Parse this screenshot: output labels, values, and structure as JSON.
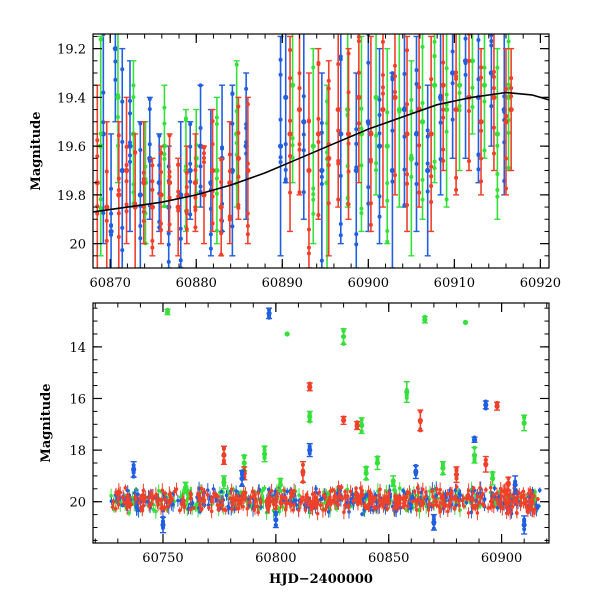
{
  "figure": {
    "colors": {
      "blue": "#1f5fe0",
      "green": "#35e03a",
      "red": "#f0402a",
      "model": "#000000",
      "frame": "#000000"
    }
  },
  "chart_data": [
    {
      "type": "scatter",
      "title": "",
      "xlabel": "",
      "ylabel": "Magnitude",
      "xlim": [
        60868,
        60921
      ],
      "ylim": [
        20.1,
        19.14
      ],
      "y_inverted": true,
      "grid": false,
      "legend": "none",
      "x_ticks": [
        60870,
        60880,
        60890,
        60900,
        60910,
        60920
      ],
      "y_ticks": [
        19.2,
        19.4,
        19.6,
        19.8,
        20
      ],
      "y_tick_labels": [
        "19.2",
        "19.4",
        "19.6",
        "19.8",
        "20"
      ],
      "series": [
        {
          "color": "blue",
          "marker": "circle-errorbar",
          "points": [
            [
              60869.2,
              19.55,
              0.45
            ],
            [
              60870.1,
              19.95,
              0.4
            ],
            [
              60870.6,
              19.2,
              0.3
            ],
            [
              60871.4,
              19.7,
              0.5
            ],
            [
              60872.3,
              19.6,
              0.35
            ],
            [
              60873.5,
              19.8,
              0.3
            ],
            [
              60874.6,
              19.65,
              0.25
            ],
            [
              60875.7,
              19.75,
              0.2
            ],
            [
              60876.8,
              19.85,
              0.25
            ],
            [
              60878.2,
              19.8,
              0.3
            ],
            [
              60879.3,
              19.7,
              0.2
            ],
            [
              60880.5,
              19.6,
              0.25
            ],
            [
              60881.7,
              19.75,
              0.3
            ],
            [
              60883.0,
              19.65,
              0.3
            ],
            [
              60884.2,
              19.7,
              0.35
            ],
            [
              60885.8,
              19.6,
              0.3
            ],
            [
              60889.8,
              19.6,
              0.45
            ],
            [
              60890.4,
              19.4,
              0.35
            ],
            [
              60892.5,
              19.5,
              0.4
            ],
            [
              60894.6,
              19.7,
              0.4
            ],
            [
              60896.8,
              19.55,
              0.45
            ],
            [
              60898.6,
              19.7,
              0.4
            ],
            [
              60900.0,
              19.5,
              0.45
            ],
            [
              60901.3,
              19.6,
              0.4
            ],
            [
              60902.8,
              19.7,
              0.4
            ],
            [
              60904.2,
              19.45,
              0.4
            ],
            [
              60905.6,
              19.55,
              0.4
            ],
            [
              60906.9,
              19.7,
              0.35
            ],
            [
              60908.4,
              19.4,
              0.4
            ],
            [
              60909.8,
              19.3,
              0.35
            ],
            [
              60911.3,
              19.25,
              0.4
            ],
            [
              60912.8,
              19.4,
              0.35
            ],
            [
              60914.3,
              19.3,
              0.3
            ],
            [
              60915.8,
              19.45,
              0.35
            ]
          ]
        },
        {
          "color": "green",
          "marker": "circle-errorbar",
          "points": [
            [
              60868.9,
              19.6,
              0.45
            ],
            [
              60870.9,
              19.4,
              0.35
            ],
            [
              60872.7,
              19.55,
              0.3
            ],
            [
              60874.1,
              19.75,
              0.25
            ],
            [
              60876.3,
              19.6,
              0.25
            ],
            [
              60878.8,
              19.7,
              0.25
            ],
            [
              60880.0,
              19.65,
              0.2
            ],
            [
              60882.4,
              19.7,
              0.3
            ],
            [
              60884.7,
              19.55,
              0.3
            ],
            [
              60891.2,
              19.35,
              0.4
            ],
            [
              60893.6,
              19.6,
              0.4
            ],
            [
              60895.2,
              19.75,
              0.4
            ],
            [
              60897.6,
              19.45,
              0.4
            ],
            [
              60899.2,
              19.55,
              0.4
            ],
            [
              60900.9,
              19.4,
              0.4
            ],
            [
              60902.2,
              19.6,
              0.4
            ],
            [
              60903.6,
              19.45,
              0.4
            ],
            [
              60905.0,
              19.65,
              0.4
            ],
            [
              60906.3,
              19.5,
              0.4
            ],
            [
              60907.7,
              19.35,
              0.4
            ],
            [
              60909.1,
              19.45,
              0.4
            ],
            [
              60910.6,
              19.35,
              0.35
            ],
            [
              60912.1,
              19.25,
              0.3
            ],
            [
              60913.5,
              19.35,
              0.3
            ],
            [
              60915.0,
              19.55,
              0.35
            ],
            [
              60916.3,
              19.4,
              0.3
            ]
          ]
        },
        {
          "color": "red",
          "marker": "circle-errorbar",
          "points": [
            [
              60868.5,
              19.75,
              0.4
            ],
            [
              60869.6,
              19.85,
              0.35
            ],
            [
              60871.0,
              19.8,
              0.3
            ],
            [
              60871.9,
              19.7,
              0.3
            ],
            [
              60872.9,
              19.85,
              0.3
            ],
            [
              60873.9,
              19.75,
              0.25
            ],
            [
              60874.9,
              19.85,
              0.2
            ],
            [
              60875.9,
              19.8,
              0.2
            ],
            [
              60876.9,
              19.75,
              0.2
            ],
            [
              60877.9,
              19.85,
              0.2
            ],
            [
              60878.9,
              19.8,
              0.2
            ],
            [
              60879.9,
              19.75,
              0.2
            ],
            [
              60880.9,
              19.8,
              0.2
            ],
            [
              60881.9,
              19.7,
              0.25
            ],
            [
              60882.9,
              19.85,
              0.2
            ],
            [
              60883.9,
              19.75,
              0.25
            ],
            [
              60884.9,
              19.65,
              0.25
            ],
            [
              60886.0,
              19.7,
              0.3
            ],
            [
              60890.9,
              19.55,
              0.4
            ],
            [
              60892.0,
              19.45,
              0.35
            ],
            [
              60893.1,
              19.7,
              0.4
            ],
            [
              60894.2,
              19.55,
              0.35
            ],
            [
              60895.4,
              19.65,
              0.4
            ],
            [
              60896.5,
              19.45,
              0.4
            ],
            [
              60897.7,
              19.55,
              0.35
            ],
            [
              60898.9,
              19.4,
              0.35
            ],
            [
              60900.3,
              19.55,
              0.4
            ],
            [
              60901.7,
              19.45,
              0.4
            ],
            [
              60903.1,
              19.4,
              0.4
            ],
            [
              60904.5,
              19.55,
              0.4
            ],
            [
              60905.9,
              19.45,
              0.4
            ],
            [
              60907.3,
              19.55,
              0.4
            ],
            [
              60908.7,
              19.35,
              0.35
            ],
            [
              60910.2,
              19.45,
              0.35
            ],
            [
              60911.7,
              19.4,
              0.3
            ],
            [
              60913.1,
              19.5,
              0.3
            ],
            [
              60914.6,
              19.4,
              0.3
            ],
            [
              60916.0,
              19.5,
              0.3
            ],
            [
              60916.6,
              19.45,
              0.25
            ]
          ]
        }
      ],
      "model_curve": [
        [
          60868,
          19.87
        ],
        [
          60872,
          19.85
        ],
        [
          60876,
          19.83
        ],
        [
          60880,
          19.8
        ],
        [
          60884,
          19.76
        ],
        [
          60888,
          19.71
        ],
        [
          60892,
          19.65
        ],
        [
          60896,
          19.59
        ],
        [
          60900,
          19.53
        ],
        [
          60904,
          19.48
        ],
        [
          60908,
          19.43
        ],
        [
          60912,
          19.4
        ],
        [
          60916,
          19.38
        ],
        [
          60919,
          19.39
        ],
        [
          60921,
          19.41
        ]
      ]
    },
    {
      "type": "scatter",
      "title": "",
      "xlabel": "HJD−2400000",
      "ylabel": "Magnitude",
      "xlim": [
        60719,
        60921
      ],
      "ylim": [
        21.6,
        12.3
      ],
      "y_inverted": true,
      "grid": false,
      "legend": "none",
      "x_ticks": [
        60750,
        60800,
        60850,
        60900
      ],
      "y_ticks": [
        14,
        16,
        18,
        20
      ],
      "y_tick_labels": [
        "14",
        "16",
        "18",
        "20"
      ],
      "baseline_band": {
        "x": [
          60727,
          60917
        ],
        "center": 19.95,
        "half_width": 0.55
      },
      "series": [
        {
          "color": "green",
          "marker": "circle-errorbar",
          "points": [
            [
              60752,
              12.65,
              0.1
            ],
            [
              60805,
              13.5,
              0.0
            ],
            [
              60830,
              13.6,
              0.3
            ],
            [
              60866,
              12.95,
              0.12
            ],
            [
              60884,
              13.05,
              0.0
            ],
            [
              60815,
              16.7,
              0.2
            ],
            [
              60838,
              17.05,
              0.3
            ],
            [
              60858,
              15.75,
              0.4
            ],
            [
              60910,
              16.95,
              0.3
            ],
            [
              60795,
              18.15,
              0.3
            ],
            [
              60786,
              18.5,
              0.3
            ],
            [
              60888,
              18.2,
              0.3
            ],
            [
              60840,
              18.9,
              0.25
            ],
            [
              60845,
              18.5,
              0.25
            ],
            [
              60874,
              18.7,
              0.25
            ],
            [
              60760,
              19.45,
              0.2
            ],
            [
              60777,
              19.25,
              0.25
            ],
            [
              60802,
              19.35,
              0.25
            ],
            [
              60852,
              19.2,
              0.2
            ],
            [
              60896,
              19.1,
              0.25
            ]
          ]
        },
        {
          "color": "red",
          "marker": "circle-errorbar",
          "points": [
            [
              60815,
              15.55,
              0.15
            ],
            [
              60830,
              16.85,
              0.15
            ],
            [
              60836,
              17.05,
              0.15
            ],
            [
              60864,
              16.85,
              0.4
            ],
            [
              60898,
              16.3,
              0.15
            ],
            [
              60777,
              18.2,
              0.35
            ],
            [
              60812,
              18.85,
              0.4
            ],
            [
              60880,
              18.95,
              0.3
            ],
            [
              60893,
              18.55,
              0.3
            ],
            [
              60786,
              18.9,
              0.25
            ],
            [
              60903,
              19.3,
              0.25
            ]
          ]
        },
        {
          "color": "blue",
          "marker": "circle-errorbar",
          "points": [
            [
              60797,
              12.7,
              0.2
            ],
            [
              60893,
              16.25,
              0.15
            ],
            [
              60888,
              17.6,
              0.1
            ],
            [
              60737,
              18.75,
              0.3
            ],
            [
              60815,
              18.0,
              0.25
            ],
            [
              60862,
              18.85,
              0.25
            ],
            [
              60906,
              19.35,
              0.35
            ],
            [
              60785,
              19.1,
              0.3
            ],
            [
              60750,
              20.9,
              0.3
            ],
            [
              60800,
              20.7,
              0.3
            ],
            [
              60870,
              20.8,
              0.3
            ],
            [
              60910,
              20.9,
              0.35
            ]
          ]
        }
      ]
    }
  ]
}
